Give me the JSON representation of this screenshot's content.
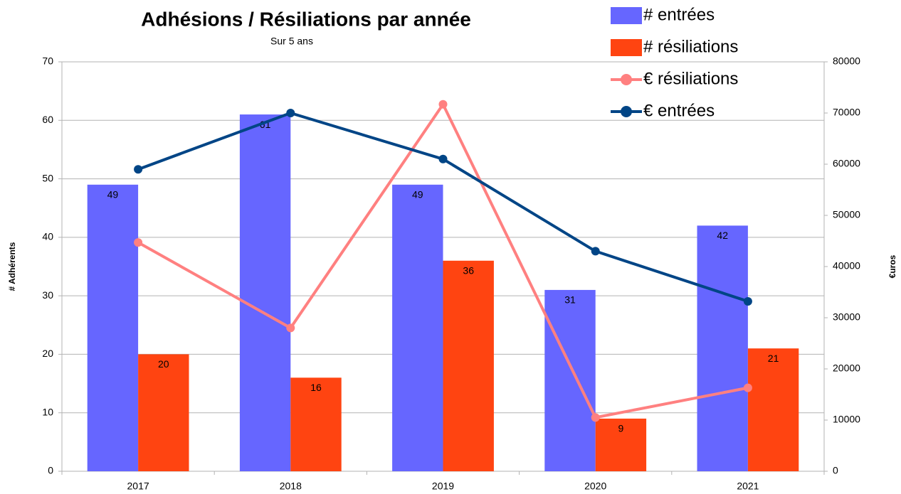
{
  "chart_data": {
    "type": "bar-line",
    "title": "Adhésions / Résiliations par année",
    "subtitle": "Sur 5 ans",
    "y_label": "# Adhérents",
    "y2_label": "€uros",
    "categories": [
      "2017",
      "2018",
      "2019",
      "2020",
      "2021"
    ],
    "series": [
      {
        "name": "# entrées",
        "type": "bar",
        "color": "#6666ff",
        "values": [
          49,
          61,
          49,
          31,
          42
        ]
      },
      {
        "name": "# résiliations",
        "type": "bar",
        "color": "#ff4411",
        "values": [
          20,
          16,
          36,
          9,
          21
        ]
      },
      {
        "name": "€ résiliations",
        "type": "line",
        "axis": "y2",
        "color": "#ff8080",
        "values": [
          44700,
          28000,
          71700,
          10500,
          16300
        ]
      },
      {
        "name": "€ entrées",
        "type": "line",
        "axis": "y2",
        "color": "#004586",
        "values": [
          59000,
          70000,
          61000,
          43000,
          33200
        ]
      }
    ],
    "ylim": [
      0,
      70
    ],
    "yticks": [
      0,
      10,
      20,
      30,
      40,
      50,
      60,
      70
    ],
    "y2lim": [
      0,
      80000
    ],
    "y2ticks": [
      0,
      10000,
      20000,
      30000,
      40000,
      50000,
      60000,
      70000,
      80000
    ],
    "grid": true,
    "legend": "top-right"
  }
}
